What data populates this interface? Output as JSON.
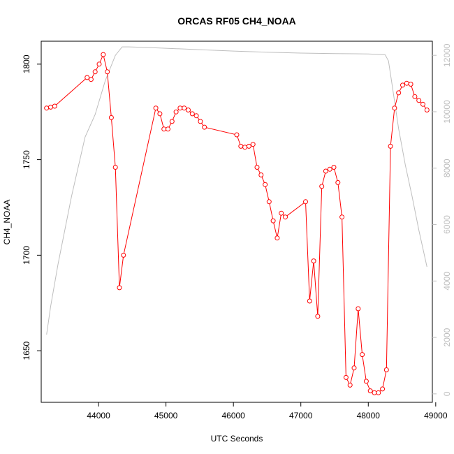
{
  "chart_data": {
    "type": "line",
    "title": "ORCAS RF05 CH4_NOAA",
    "xlabel": "UTC Seconds",
    "ylabel": "CH4_NOAA",
    "xlim": [
      43150,
      48950
    ],
    "ylim": [
      1623,
      1812
    ],
    "y2lim": [
      -300,
      12500
    ],
    "x_ticks": [
      44000,
      45000,
      46000,
      47000,
      48000,
      49000
    ],
    "y_ticks": [
      1650,
      1700,
      1750,
      1800
    ],
    "y2_ticks": [
      0,
      2000,
      4000,
      6000,
      8000,
      10000,
      12000
    ],
    "colors": {
      "ch4": "#ff0000",
      "altitude": "#bebebe"
    },
    "series": [
      {
        "axis": "left",
        "x": [
          43230,
          43290,
          43350,
          43830,
          43890,
          43950,
          44010,
          44070,
          44130,
          44190,
          44250,
          44310,
          44370,
          44850,
          44910,
          44970,
          45030,
          45090,
          45150,
          45210,
          45270,
          45330,
          45390,
          45450,
          45510,
          45570,
          46050,
          46110,
          46170,
          46230,
          46290,
          46350,
          46410,
          46470,
          46530,
          46590,
          46650,
          46710,
          46770,
          47070,
          47130,
          47190,
          47250,
          47310,
          47370,
          47430,
          47490,
          47550,
          47610,
          47670,
          47730,
          47790,
          47850,
          47910,
          47970,
          48030,
          48090,
          48150,
          48210,
          48270,
          48330,
          48390,
          48450,
          48510,
          48570,
          48630,
          48690,
          48750,
          48810,
          48870
        ],
        "values": [
          1777,
          1777.5,
          1778,
          1793,
          1792,
          1796,
          1800,
          1805,
          1796,
          1772,
          1746,
          1683,
          1700,
          1777,
          1774,
          1766,
          1766,
          1770,
          1775,
          1777,
          1777,
          1776,
          1774,
          1773,
          1770,
          1767,
          1763,
          1757,
          1756.5,
          1757,
          1758,
          1746,
          1742,
          1737,
          1728,
          1718,
          1709,
          1722,
          1720,
          1728,
          1676,
          1697,
          1668,
          1736,
          1744,
          1745,
          1746,
          1738,
          1720,
          1636,
          1632,
          1641,
          1672,
          1648,
          1634,
          1629,
          1628,
          1628,
          1630,
          1640,
          1757,
          1777,
          1785,
          1789,
          1790,
          1789.5,
          1783,
          1781,
          1779,
          1776
        ]
      },
      {
        "axis": "right",
        "x": [
          43230,
          43290,
          43400,
          43600,
          43800,
          43950,
          44100,
          44250,
          44350,
          44450,
          44700,
          45000,
          45500,
          46000,
          46500,
          47000,
          47500,
          48000,
          48250,
          48300,
          48350,
          48450,
          48550,
          48650,
          48750,
          48870
        ],
        "values": [
          2100,
          3100,
          4600,
          7000,
          9100,
          9900,
          11100,
          12000,
          12300,
          12300,
          12280,
          12250,
          12200,
          12150,
          12110,
          12080,
          12060,
          12050,
          12020,
          11800,
          11000,
          9400,
          8100,
          7000,
          5800,
          4500
        ]
      }
    ]
  }
}
